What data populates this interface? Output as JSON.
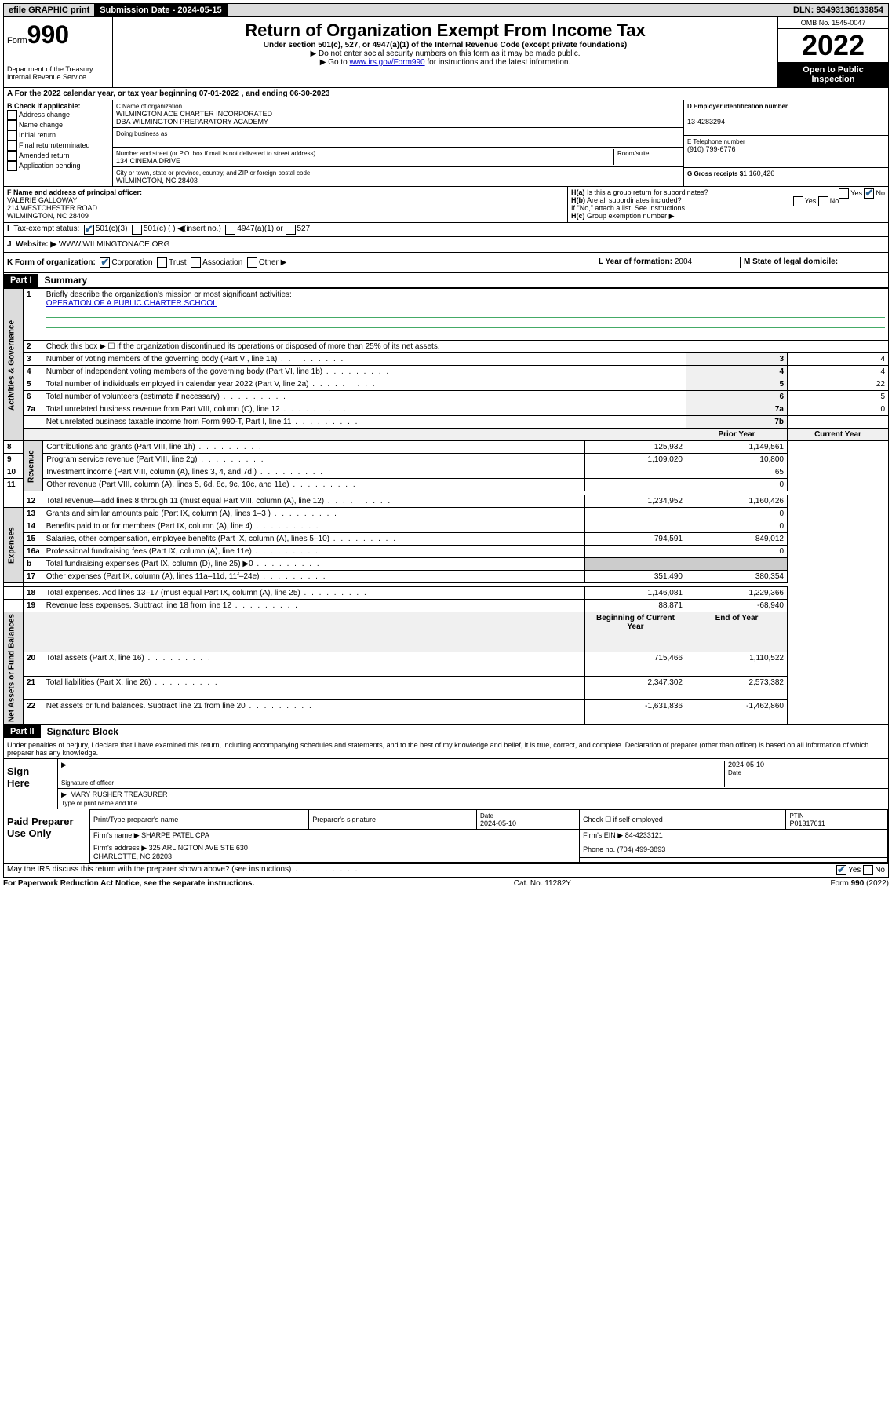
{
  "topbar": {
    "efile": "efile GRAPHIC print",
    "submission_label": "Submission Date - 2024-05-15",
    "dln": "DLN: 93493136133854"
  },
  "header": {
    "form_label": "Form",
    "form_number": "990",
    "dept": "Department of the Treasury",
    "irs": "Internal Revenue Service",
    "title": "Return of Organization Exempt From Income Tax",
    "subtitle": "Under section 501(c), 527, or 4947(a)(1) of the Internal Revenue Code (except private foundations)",
    "note1": "▶ Do not enter social security numbers on this form as it may be made public.",
    "note2_prefix": "▶ Go to ",
    "note2_link": "www.irs.gov/Form990",
    "note2_suffix": " for instructions and the latest information.",
    "omb": "OMB No. 1545-0047",
    "year": "2022",
    "inspection": "Open to Public Inspection"
  },
  "rowA": "For the 2022 calendar year, or tax year beginning 07-01-2022   , and ending 06-30-2023",
  "colB": {
    "label": "B Check if applicable:",
    "items": [
      "Address change",
      "Name change",
      "Initial return",
      "Final return/terminated",
      "Amended return",
      "Application pending"
    ]
  },
  "orgbox": {
    "c_label": "C Name of organization",
    "name1": "WILMINGTON ACE CHARTER INCORPORATED",
    "name2": "DBA WILMINGTON PREPARATORY ACADEMY",
    "dba_label": "Doing business as",
    "addr_label": "Number and street (or P.O. box if mail is not delivered to street address)",
    "room_label": "Room/suite",
    "addr": "134 CINEMA DRIVE",
    "city_label": "City or town, state or province, country, and ZIP or foreign postal code",
    "city": "WILMINGTON, NC  28403"
  },
  "rightbox": {
    "d_label": "D Employer identification number",
    "ein": "13-4283294",
    "e_label": "E Telephone number",
    "phone": "(910) 799-6776",
    "g_label": "G Gross receipts $",
    "gross": "1,160,426"
  },
  "officer": {
    "f_label": "F Name and address of principal officer:",
    "name": "VALERIE GALLOWAY",
    "addr1": "214 WESTCHESTER ROAD",
    "addr2": "WILMINGTON, NC  28409"
  },
  "hbox": {
    "ha": "Is this a group return for subordinates?",
    "hb": "Are all subordinates included?",
    "hb_note": "If \"No,\" attach a list. See instructions.",
    "hc": "Group exemption number ▶"
  },
  "rowI": {
    "label": "Tax-exempt status:",
    "opts": [
      "501(c)(3)",
      "501(c) ( ) ◀(insert no.)",
      "4947(a)(1) or",
      "527"
    ]
  },
  "rowJ": {
    "label": "Website: ▶",
    "val": "WWW.WILMINGTONACE.ORG"
  },
  "rowK": {
    "label": "K Form of organization:",
    "opts": [
      "Corporation",
      "Trust",
      "Association",
      "Other ▶"
    ],
    "l_label": "L Year of formation:",
    "l_val": "2004",
    "m_label": "M State of legal domicile:"
  },
  "part1": {
    "header": "Part I",
    "title": "Summary",
    "line1_label": "Briefly describe the organization's mission or most significant activities:",
    "line1_val": "OPERATION OF A PUBLIC CHARTER SCHOOL",
    "line2": "Check this box ▶ ☐  if the organization discontinued its operations or disposed of more than 25% of its net assets.",
    "sections": {
      "gov": "Activities & Governance",
      "rev": "Revenue",
      "exp": "Expenses",
      "net": "Net Assets or Fund Balances"
    },
    "rows_single": [
      {
        "n": "3",
        "label": "Number of voting members of the governing body (Part VI, line 1a)",
        "box": "3",
        "val": "4"
      },
      {
        "n": "4",
        "label": "Number of independent voting members of the governing body (Part VI, line 1b)",
        "box": "4",
        "val": "4"
      },
      {
        "n": "5",
        "label": "Total number of individuals employed in calendar year 2022 (Part V, line 2a)",
        "box": "5",
        "val": "22"
      },
      {
        "n": "6",
        "label": "Total number of volunteers (estimate if necessary)",
        "box": "6",
        "val": "5"
      },
      {
        "n": "7a",
        "label": "Total unrelated business revenue from Part VIII, column (C), line 12",
        "box": "7a",
        "val": "0"
      },
      {
        "n": "",
        "label": "Net unrelated business taxable income from Form 990-T, Part I, line 11",
        "box": "7b",
        "val": ""
      }
    ],
    "col_headers": {
      "prior": "Prior Year",
      "current": "Current Year"
    },
    "rows_double": [
      {
        "n": "8",
        "label": "Contributions and grants (Part VIII, line 1h)",
        "prior": "125,932",
        "curr": "1,149,561"
      },
      {
        "n": "9",
        "label": "Program service revenue (Part VIII, line 2g)",
        "prior": "1,109,020",
        "curr": "10,800"
      },
      {
        "n": "10",
        "label": "Investment income (Part VIII, column (A), lines 3, 4, and 7d )",
        "prior": "",
        "curr": "65"
      },
      {
        "n": "11",
        "label": "Other revenue (Part VIII, column (A), lines 5, 6d, 8c, 9c, 10c, and 11e)",
        "prior": "",
        "curr": "0"
      },
      {
        "n": "12",
        "label": "Total revenue—add lines 8 through 11 (must equal Part VIII, column (A), line 12)",
        "prior": "1,234,952",
        "curr": "1,160,426"
      },
      {
        "n": "13",
        "label": "Grants and similar amounts paid (Part IX, column (A), lines 1–3 )",
        "prior": "",
        "curr": "0"
      },
      {
        "n": "14",
        "label": "Benefits paid to or for members (Part IX, column (A), line 4)",
        "prior": "",
        "curr": "0"
      },
      {
        "n": "15",
        "label": "Salaries, other compensation, employee benefits (Part IX, column (A), lines 5–10)",
        "prior": "794,591",
        "curr": "849,012"
      },
      {
        "n": "16a",
        "label": "Professional fundraising fees (Part IX, column (A), line 11e)",
        "prior": "",
        "curr": "0"
      },
      {
        "n": "b",
        "label": "Total fundraising expenses (Part IX, column (D), line 25) ▶0",
        "prior": "—",
        "curr": "—"
      },
      {
        "n": "17",
        "label": "Other expenses (Part IX, column (A), lines 11a–11d, 11f–24e)",
        "prior": "351,490",
        "curr": "380,354"
      },
      {
        "n": "18",
        "label": "Total expenses. Add lines 13–17 (must equal Part IX, column (A), line 25)",
        "prior": "1,146,081",
        "curr": "1,229,366"
      },
      {
        "n": "19",
        "label": "Revenue less expenses. Subtract line 18 from line 12",
        "prior": "88,871",
        "curr": "-68,940"
      }
    ],
    "col_headers2": {
      "beg": "Beginning of Current Year",
      "end": "End of Year"
    },
    "rows_net": [
      {
        "n": "20",
        "label": "Total assets (Part X, line 16)",
        "prior": "715,466",
        "curr": "1,110,522"
      },
      {
        "n": "21",
        "label": "Total liabilities (Part X, line 26)",
        "prior": "2,347,302",
        "curr": "2,573,382"
      },
      {
        "n": "22",
        "label": "Net assets or fund balances. Subtract line 21 from line 20",
        "prior": "-1,631,836",
        "curr": "-1,462,860"
      }
    ]
  },
  "part2": {
    "header": "Part II",
    "title": "Signature Block",
    "perjury": "Under penalties of perjury, I declare that I have examined this return, including accompanying schedules and statements, and to the best of my knowledge and belief, it is true, correct, and complete. Declaration of preparer (other than officer) is based on all information of which preparer has any knowledge.",
    "sign_here": "Sign Here",
    "sig_officer": "Signature of officer",
    "sig_date": "2024-05-10",
    "date_label": "Date",
    "officer_name": "MARY RUSHER  TREASURER",
    "type_label": "Type or print name and title",
    "paid_label": "Paid Preparer Use Only",
    "prep": {
      "h1": "Print/Type preparer's name",
      "h2": "Preparer's signature",
      "h3": "Date",
      "h4": "Check ☐ if self-employed",
      "h5": "PTIN",
      "date": "2024-05-10",
      "ptin": "P01317611",
      "firm_name_label": "Firm's name  ▶",
      "firm_name": "SHARPE PATEL CPA",
      "firm_ein_label": "Firm's EIN ▶",
      "firm_ein": "84-4233121",
      "firm_addr_label": "Firm's address ▶",
      "firm_addr": "325 ARLINGTON AVE STE 630",
      "firm_city": "CHARLOTTE, NC  28203",
      "phone_label": "Phone no.",
      "phone": "(704) 499-3893"
    },
    "discuss": "May the IRS discuss this return with the preparer shown above? (see instructions)",
    "footer_left": "For Paperwork Reduction Act Notice, see the separate instructions.",
    "footer_mid": "Cat. No. 11282Y",
    "footer_right": "Form 990 (2022)"
  }
}
